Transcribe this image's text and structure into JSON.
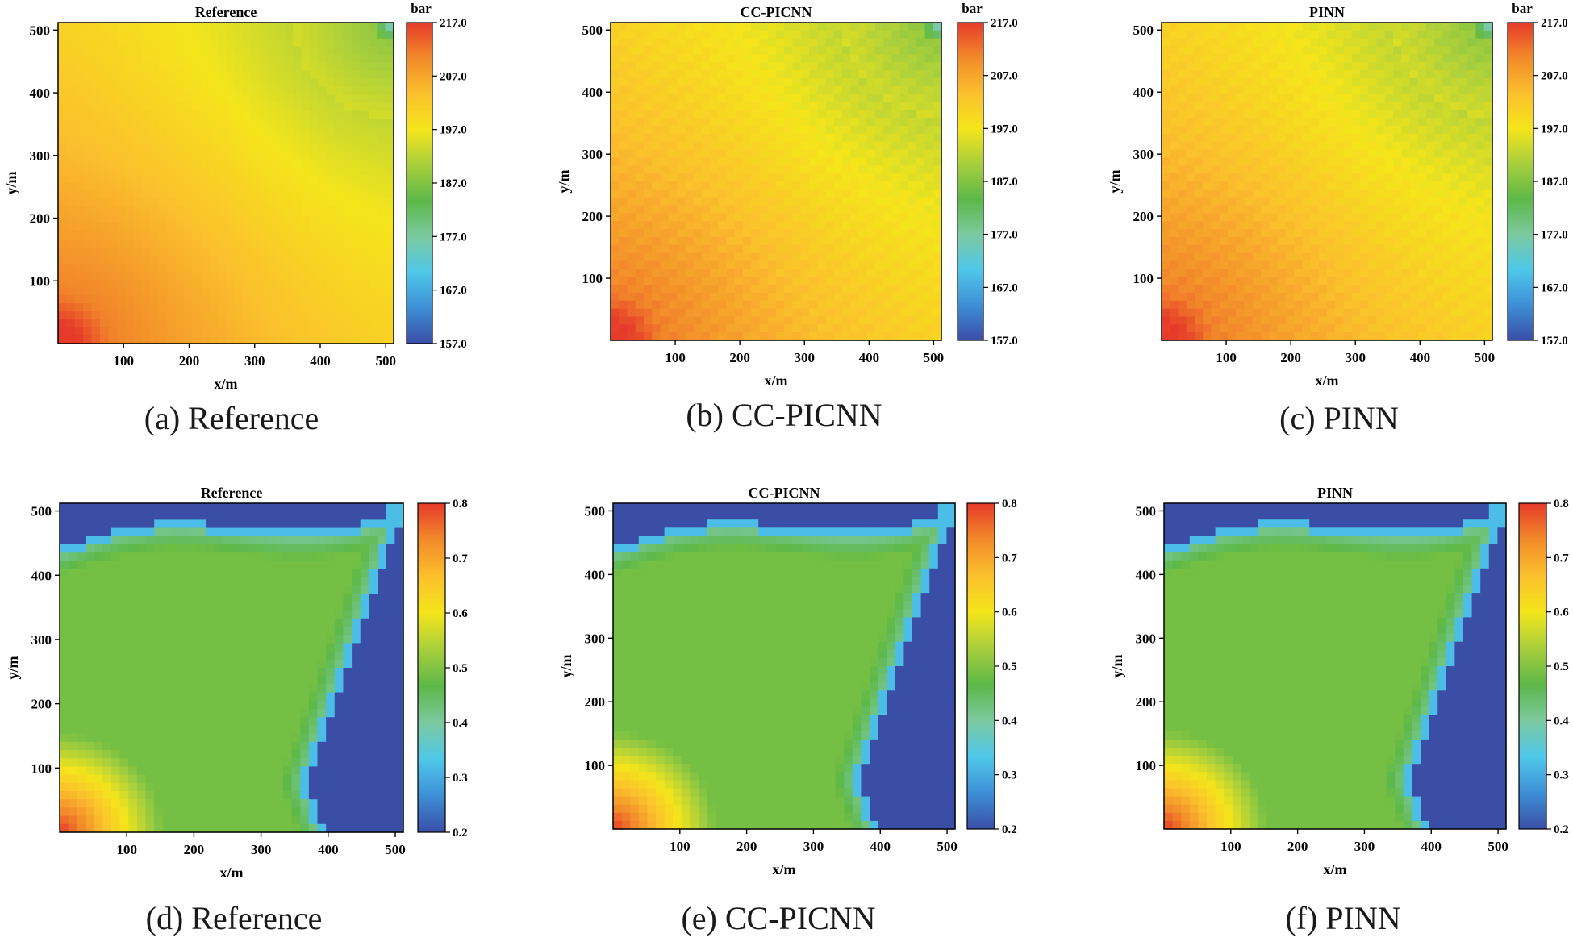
{
  "chart_data": [
    {
      "id": "a",
      "type": "heatmap",
      "field": "pressure",
      "title": "Reference",
      "caption": "(a) Reference",
      "xlabel": "x/m",
      "ylabel": "y/m",
      "xlim": [
        0,
        512
      ],
      "ylim": [
        0,
        512
      ],
      "xticks": [
        100,
        200,
        300,
        400,
        500
      ],
      "yticks": [
        100,
        200,
        300,
        400,
        500
      ],
      "colorbar": {
        "label": "bar",
        "min": 157.0,
        "max": 217.0,
        "ticks": [
          "157.0",
          "167.0",
          "177.0",
          "187.0",
          "197.0",
          "207.0",
          "217.0"
        ]
      }
    },
    {
      "id": "b",
      "type": "heatmap",
      "field": "pressure",
      "title": "CC-PICNN",
      "caption": "(b) CC-PICNN",
      "xlabel": "x/m",
      "ylabel": "y/m",
      "xlim": [
        0,
        512
      ],
      "ylim": [
        0,
        512
      ],
      "xticks": [
        100,
        200,
        300,
        400,
        500
      ],
      "yticks": [
        100,
        200,
        300,
        400,
        500
      ],
      "colorbar": {
        "label": "bar",
        "min": 157.0,
        "max": 217.0,
        "ticks": [
          "157.0",
          "167.0",
          "177.0",
          "187.0",
          "197.0",
          "207.0",
          "217.0"
        ]
      }
    },
    {
      "id": "c",
      "type": "heatmap",
      "field": "pressure",
      "title": "PINN",
      "caption": "(c) PINN",
      "xlabel": "x/m",
      "ylabel": "y/m",
      "xlim": [
        0,
        512
      ],
      "ylim": [
        0,
        512
      ],
      "xticks": [
        100,
        200,
        300,
        400,
        500
      ],
      "yticks": [
        100,
        200,
        300,
        400,
        500
      ],
      "colorbar": {
        "label": "bar",
        "min": 157.0,
        "max": 217.0,
        "ticks": [
          "157.0",
          "167.0",
          "177.0",
          "187.0",
          "197.0",
          "207.0",
          "217.0"
        ]
      }
    },
    {
      "id": "d",
      "type": "heatmap",
      "field": "saturation",
      "title": "Reference",
      "caption": "(d) Reference",
      "xlabel": "x/m",
      "ylabel": "y/m",
      "xlim": [
        0,
        512
      ],
      "ylim": [
        0,
        512
      ],
      "xticks": [
        100,
        200,
        300,
        400,
        500
      ],
      "yticks": [
        100,
        200,
        300,
        400,
        500
      ],
      "colorbar": {
        "label": "",
        "min": 0.2,
        "max": 0.8,
        "ticks": [
          "0.2",
          "0.3",
          "0.4",
          "0.5",
          "0.6",
          "0.7",
          "0.8"
        ]
      }
    },
    {
      "id": "e",
      "type": "heatmap",
      "field": "saturation",
      "title": "CC-PICNN",
      "caption": "(e) CC-PICNN",
      "xlabel": "x/m",
      "ylabel": "y/m",
      "xlim": [
        0,
        512
      ],
      "ylim": [
        0,
        512
      ],
      "xticks": [
        100,
        200,
        300,
        400,
        500
      ],
      "yticks": [
        100,
        200,
        300,
        400,
        500
      ],
      "colorbar": {
        "label": "",
        "min": 0.2,
        "max": 0.8,
        "ticks": [
          "0.2",
          "0.3",
          "0.4",
          "0.5",
          "0.6",
          "0.7",
          "0.8"
        ]
      }
    },
    {
      "id": "f",
      "type": "heatmap",
      "field": "saturation",
      "title": "PINN",
      "caption": "(f) PINN",
      "xlabel": "x/m",
      "ylabel": "y/m",
      "xlim": [
        0,
        512
      ],
      "ylim": [
        0,
        512
      ],
      "xticks": [
        100,
        200,
        300,
        400,
        500
      ],
      "yticks": [
        100,
        200,
        300,
        400,
        500
      ],
      "colorbar": {
        "label": "",
        "min": 0.2,
        "max": 0.8,
        "ticks": [
          "0.2",
          "0.3",
          "0.4",
          "0.5",
          "0.6",
          "0.7",
          "0.8"
        ]
      }
    }
  ],
  "colormap": [
    "#3a4ea6",
    "#3e8fd6",
    "#4fc8ea",
    "#7cc9a0",
    "#5db848",
    "#a8cf3c",
    "#f5e51b",
    "#fbc02d",
    "#f28a2a",
    "#e63b2a"
  ]
}
